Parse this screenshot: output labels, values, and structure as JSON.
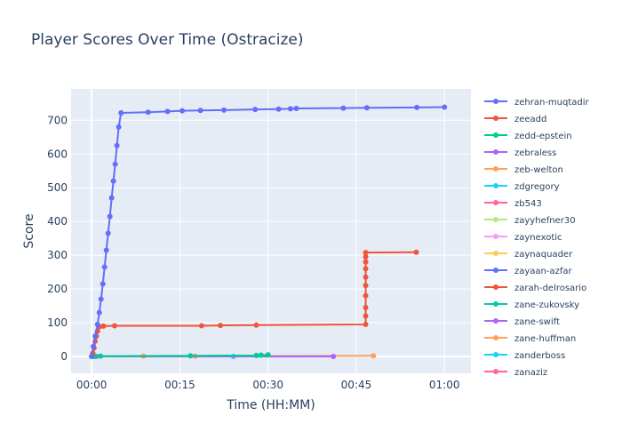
{
  "chart_data": {
    "type": "line",
    "title": "Player Scores Over Time (Ostracize)",
    "xlabel": "Time (HH:MM)",
    "ylabel": "Score",
    "xlim_minutes": [
      -3.5,
      64.5
    ],
    "ylim": [
      -50,
      793
    ],
    "x_ticks": [
      {
        "value": 0,
        "label": "00:00"
      },
      {
        "value": 15,
        "label": "00:15"
      },
      {
        "value": 30,
        "label": "00:30"
      },
      {
        "value": 45,
        "label": "00:45"
      },
      {
        "value": 60,
        "label": "01:00"
      }
    ],
    "y_ticks": [
      0,
      100,
      200,
      300,
      400,
      500,
      600,
      700
    ],
    "grid": true,
    "legend_position": "right",
    "series": [
      {
        "name": "zehran-muqtadir",
        "color": "#636efa",
        "x": [
          0,
          0.3,
          0.6,
          1.0,
          1.3,
          1.6,
          1.9,
          2.2,
          2.5,
          2.8,
          3.1,
          3.4,
          3.7,
          4.0,
          4.3,
          4.6,
          5.0,
          9.6,
          12.9,
          15.4,
          18.5,
          22.5,
          27.8,
          31.8,
          33.8,
          34.8,
          42.8,
          46.8,
          55.3,
          60.0
        ],
        "y": [
          0,
          30,
          60,
          95,
          130,
          170,
          215,
          265,
          315,
          365,
          415,
          470,
          520,
          570,
          625,
          680,
          722,
          724,
          726,
          728,
          729,
          730,
          732,
          733,
          734,
          735,
          736,
          737,
          738,
          739
        ]
      },
      {
        "name": "zeeadd",
        "color": "#ef553b",
        "x": [
          0,
          0.2,
          0.4,
          0.6,
          0.8,
          1.0,
          1.3,
          2.0,
          3.9,
          18.7,
          21.9,
          28.0,
          46.6,
          46.6,
          46.6,
          46.6,
          46.6,
          46.6,
          46.6,
          46.6,
          46.6,
          46.6,
          55.2
        ],
        "y": [
          0,
          10,
          25,
          45,
          60,
          75,
          88,
          90,
          91,
          91,
          92,
          93,
          95,
          120,
          145,
          180,
          210,
          235,
          260,
          280,
          295,
          308,
          309
        ]
      },
      {
        "name": "zedd-epstein",
        "color": "#00cc96",
        "x": [
          0.5,
          1.5,
          16.8,
          28.0,
          28.8,
          30.0
        ],
        "y": [
          0,
          1,
          2,
          3,
          4,
          5
        ]
      },
      {
        "name": "zebraless",
        "color": "#ab63fa",
        "x": [
          0.8,
          41.1
        ],
        "y": [
          0,
          0
        ]
      },
      {
        "name": "zeb-welton",
        "color": "#ffa15a",
        "x": [
          0.2,
          8.8,
          17.6,
          47.9
        ],
        "y": [
          0,
          1,
          1,
          2
        ]
      },
      {
        "name": "zdgregory",
        "color": "#19d3f3",
        "x": [
          0.3,
          24.1
        ],
        "y": [
          0,
          0
        ]
      },
      {
        "name": "zb543",
        "color": "#ff6692",
        "x": [
          0.1
        ],
        "y": [
          0
        ]
      },
      {
        "name": "zayyhefner30",
        "color": "#b6e880",
        "x": [
          0.1
        ],
        "y": [
          0
        ]
      },
      {
        "name": "zaynexotic",
        "color": "#ff97ff",
        "x": [
          0.1
        ],
        "y": [
          0
        ]
      },
      {
        "name": "zaynaquader",
        "color": "#fecb52",
        "x": [
          0.1
        ],
        "y": [
          0
        ]
      },
      {
        "name": "zayaan-azfar",
        "color": "#636efa",
        "x": [
          0.1
        ],
        "y": [
          0
        ]
      },
      {
        "name": "zarah-delrosario",
        "color": "#ef553b",
        "x": [
          0.1
        ],
        "y": [
          0
        ]
      },
      {
        "name": "zane-zukovsky",
        "color": "#00cc96",
        "x": [
          0.1
        ],
        "y": [
          0
        ]
      },
      {
        "name": "zane-swift",
        "color": "#ab63fa",
        "x": [
          0.1
        ],
        "y": [
          0
        ]
      },
      {
        "name": "zane-huffman",
        "color": "#ffa15a",
        "x": [
          0.1
        ],
        "y": [
          0
        ]
      },
      {
        "name": "zanderboss",
        "color": "#19d3f3",
        "x": [
          0.1
        ],
        "y": [
          0
        ]
      },
      {
        "name": "zanaziz",
        "color": "#ff6692",
        "x": [
          0.1
        ],
        "y": [
          0
        ]
      }
    ]
  }
}
